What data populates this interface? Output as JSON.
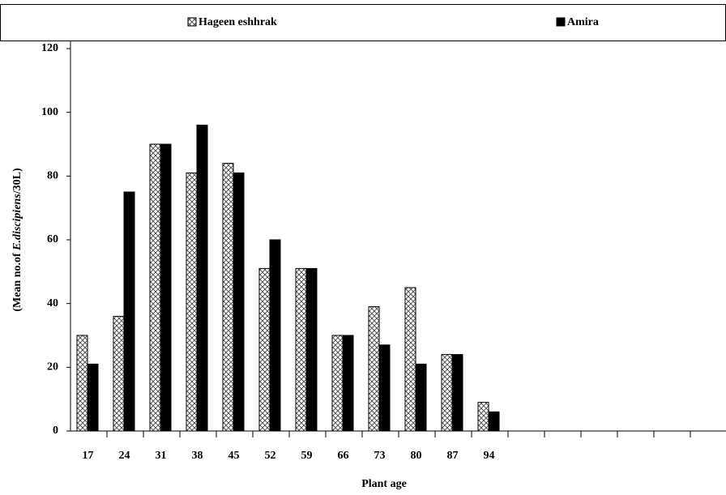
{
  "chart_data": {
    "type": "bar",
    "ylabel": [
      "(Mean no.of ",
      "E.discipiens",
      "/30L)"
    ],
    "xlabel": "Plant age",
    "categories": [
      "17",
      "24",
      "31",
      "38",
      "45",
      "52",
      "59",
      "66",
      "73",
      "80",
      "87",
      "94",
      null,
      null,
      null,
      null,
      null,
      null
    ],
    "series": [
      {
        "name": "Hageen eshhrak",
        "color": "#ffffff",
        "pattern": "crosshatch",
        "values": [
          30,
          36,
          90,
          81,
          84,
          51,
          51,
          30,
          39,
          45,
          24,
          9,
          null,
          null,
          null,
          null,
          null,
          null
        ]
      },
      {
        "name": "Amira",
        "color": "#000000",
        "values": [
          21,
          75,
          90,
          96,
          81,
          60,
          51,
          30,
          27,
          21,
          24,
          6,
          null,
          null,
          null,
          null,
          null,
          null
        ]
      }
    ],
    "ylim": [
      0,
      120
    ],
    "yticks": [
      0,
      20,
      40,
      60,
      80,
      100,
      120
    ],
    "grid": false,
    "legend": "top"
  }
}
